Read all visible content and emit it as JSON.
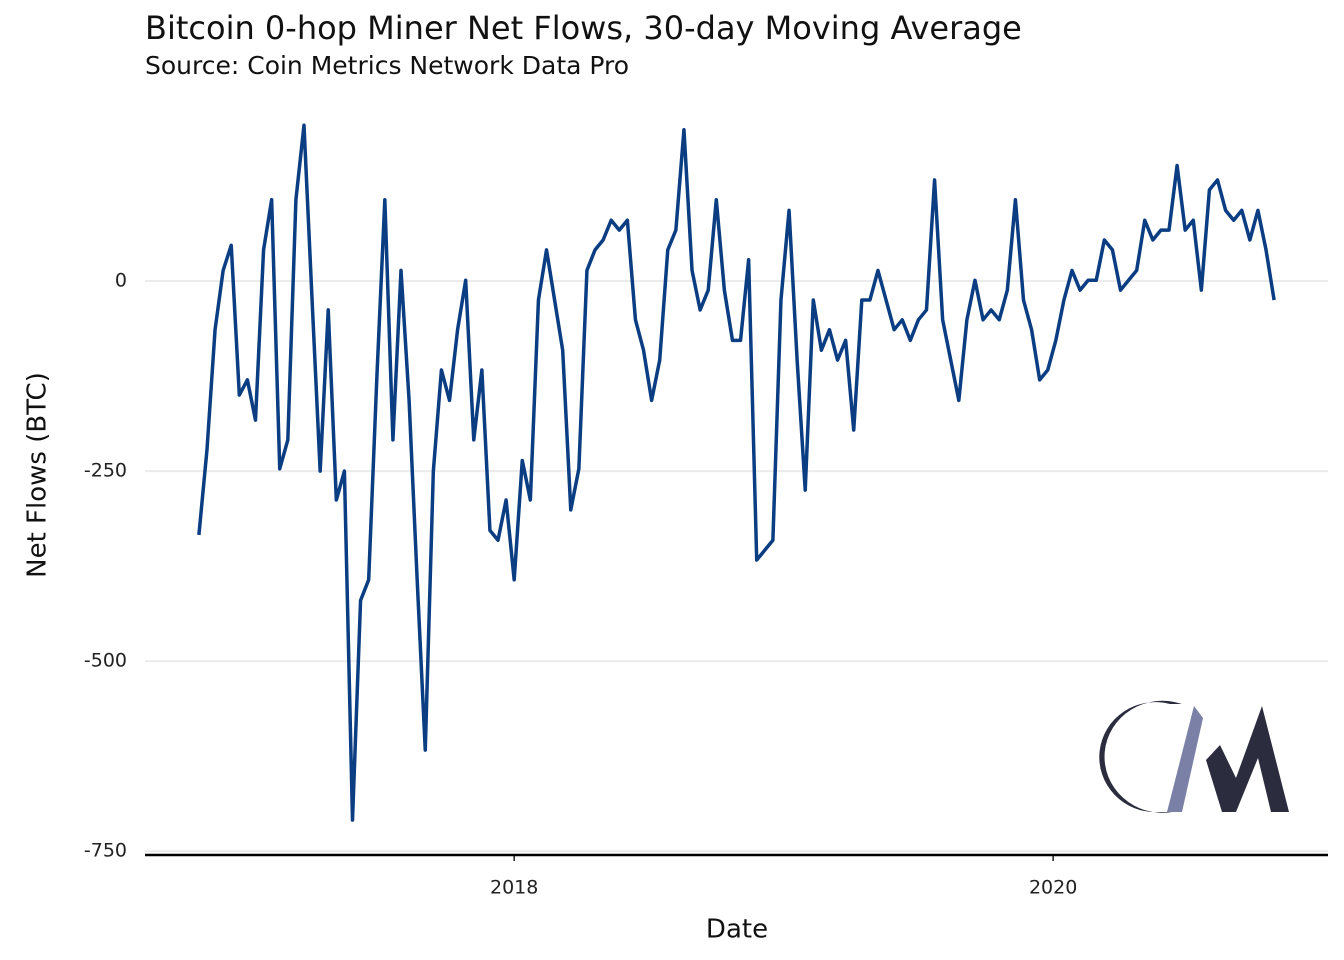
{
  "chart_data": {
    "type": "line",
    "title": "Bitcoin 0-hop Miner Net Flows, 30-day Moving Average",
    "subtitle": "Source: Coin Metrics Network Data Pro",
    "x_label": "Date",
    "y_label": "Net Flows (BTC)",
    "color": "#0b3d82",
    "grid": true,
    "xlim": [
      2016.63,
      2021.02
    ],
    "xticks": [
      2018,
      2020
    ],
    "ylim": [
      -755,
      215
    ],
    "yticks": [
      -750,
      -500,
      -250,
      0
    ],
    "x": [
      2016.83,
      2016.86,
      2016.89,
      2016.92,
      2016.95,
      2016.98,
      2017.01,
      2017.04,
      2017.07,
      2017.1,
      2017.13,
      2017.16,
      2017.19,
      2017.22,
      2017.25,
      2017.28,
      2017.31,
      2017.34,
      2017.37,
      2017.4,
      2017.43,
      2017.46,
      2017.49,
      2017.52,
      2017.55,
      2017.58,
      2017.61,
      2017.64,
      2017.67,
      2017.7,
      2017.73,
      2017.76,
      2017.79,
      2017.82,
      2017.85,
      2017.88,
      2017.91,
      2017.94,
      2017.97,
      2018.0,
      2018.03,
      2018.06,
      2018.09,
      2018.12,
      2018.15,
      2018.18,
      2018.21,
      2018.24,
      2018.27,
      2018.3,
      2018.33,
      2018.36,
      2018.39,
      2018.42,
      2018.45,
      2018.48,
      2018.51,
      2018.54,
      2018.57,
      2018.6,
      2018.63,
      2018.66,
      2018.69,
      2018.72,
      2018.75,
      2018.78,
      2018.81,
      2018.84,
      2018.87,
      2018.9,
      2018.93,
      2018.96,
      2018.99,
      2019.02,
      2019.05,
      2019.08,
      2019.11,
      2019.14,
      2019.17,
      2019.2,
      2019.23,
      2019.26,
      2019.29,
      2019.32,
      2019.35,
      2019.38,
      2019.41,
      2019.44,
      2019.47,
      2019.5,
      2019.53,
      2019.56,
      2019.59,
      2019.62,
      2019.65,
      2019.68,
      2019.71,
      2019.74,
      2019.77,
      2019.8,
      2019.83,
      2019.86,
      2019.89,
      2019.92,
      2019.95,
      2019.98,
      2020.01,
      2020.04,
      2020.07,
      2020.1,
      2020.13,
      2020.16,
      2020.19,
      2020.22,
      2020.25,
      2020.28,
      2020.31,
      2020.34,
      2020.37,
      2020.4,
      2020.43,
      2020.46,
      2020.49,
      2020.52,
      2020.55,
      2020.58,
      2020.61,
      2020.64,
      2020.67,
      2020.7,
      2020.73,
      2020.76,
      2020.79,
      2020.82
    ],
    "values": [
      -334,
      -222,
      -64,
      14,
      47,
      -150,
      -130,
      -183,
      41,
      107,
      -247,
      -209,
      107,
      205,
      -25,
      -250,
      -38,
      -288,
      -250,
      -709,
      -420,
      -393,
      -130,
      107,
      -209,
      14,
      -157,
      -393,
      -617,
      -250,
      -117,
      -157,
      -64,
      1,
      -209,
      -117,
      -328,
      -341,
      -288,
      -393,
      -236,
      -288,
      -25,
      41,
      -25,
      -91,
      -301,
      -247,
      14,
      41,
      54,
      80,
      67,
      80,
      -51,
      -91,
      -157,
      -104,
      41,
      67,
      199,
      14,
      -38,
      -12,
      107,
      -12,
      -78,
      -78,
      28,
      -367,
      -354,
      -341,
      -25,
      93,
      -104,
      -275,
      -25,
      -91,
      -64,
      -104,
      -78,
      -196,
      -25,
      -25,
      14,
      -25,
      -64,
      -51,
      -78,
      -51,
      -38,
      133,
      -51,
      -104,
      -157,
      -51,
      1,
      -51,
      -38,
      -51,
      -12,
      107,
      -25,
      -64,
      -130,
      -117,
      -78,
      -25,
      14,
      -12,
      1,
      1,
      54,
      41,
      -12,
      1,
      14,
      80,
      54,
      67,
      67,
      152,
      67,
      80,
      -12,
      120,
      133,
      93,
      80,
      93,
      54,
      93,
      41,
      -25
    ]
  }
}
